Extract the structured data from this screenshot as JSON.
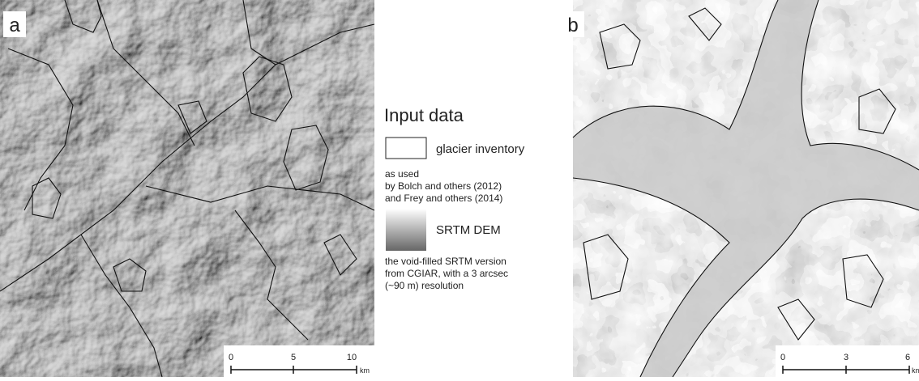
{
  "panel_a": {
    "label": "a",
    "scale_bar": {
      "ticks": [
        0,
        5,
        10
      ],
      "unit": "km"
    }
  },
  "legend": {
    "title": "Input data",
    "items": [
      {
        "label": "glacier inventory",
        "description": [
          "as used",
          "by Bolch and others (2012)",
          "and Frey and others (2014)"
        ]
      },
      {
        "label": "SRTM DEM",
        "description": [
          "the void-filled SRTM version",
          "from CGIAR, with a 3 arcsec",
          "(~90 m) resolution"
        ]
      }
    ]
  },
  "panel_b": {
    "label": "b",
    "scale_bar": {
      "ticks": [
        0,
        3,
        6
      ],
      "unit": "km"
    }
  }
}
